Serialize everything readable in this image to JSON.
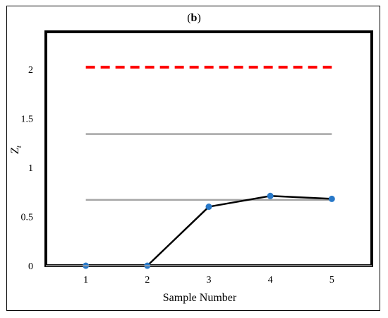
{
  "chart_data": {
    "type": "line",
    "title": "(b)",
    "xlabel": "Sample Number",
    "ylabel": "Z",
    "ylabel_subscript": "t",
    "x": [
      1,
      2,
      3,
      4,
      5
    ],
    "xticks": [
      "1",
      "2",
      "3",
      "4",
      "5"
    ],
    "yticks": [
      "0",
      "0.5",
      "1",
      "1.5",
      "2"
    ],
    "ytick_values": [
      0,
      0.5,
      1,
      1.5,
      2
    ],
    "xlim": [
      0.35,
      5.65
    ],
    "ylim": [
      0,
      2.38
    ],
    "series": [
      {
        "style": "line-with-markers",
        "values": [
          0,
          0,
          0.6,
          0.71,
          0.68
        ],
        "color": "#000000",
        "marker_color": "#2878c8"
      }
    ],
    "reference_lines": [
      {
        "style": "dashed",
        "value": 2.02,
        "color": "#ff0000"
      },
      {
        "style": "solid",
        "value": 1.34,
        "color": "#a6a6a6"
      },
      {
        "style": "solid",
        "value": 0.67,
        "color": "#a6a6a6"
      }
    ],
    "grid": false,
    "legend": "none"
  }
}
